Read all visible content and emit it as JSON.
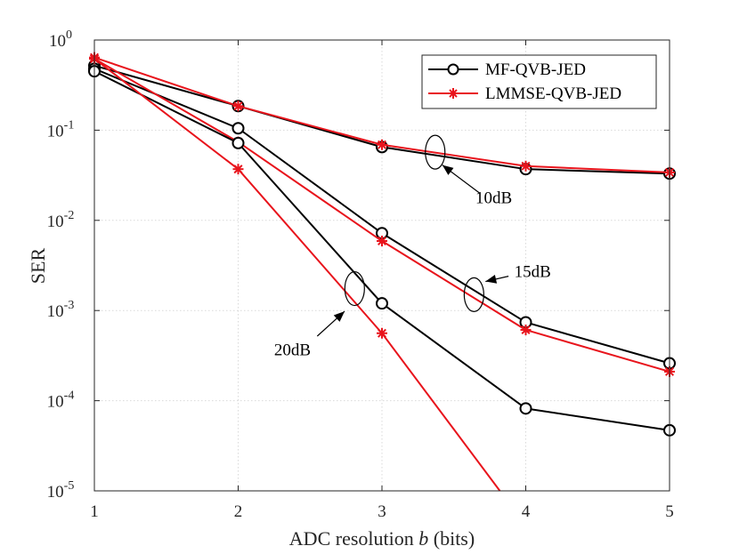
{
  "chart_data": {
    "type": "line",
    "yscale": "log",
    "xlabel_prefix": "ADC resolution ",
    "xlabel_var": "b",
    "xlabel_suffix": " (bits)",
    "ylabel": "SER",
    "xlim": [
      1,
      5
    ],
    "ylim": [
      1e-05,
      1
    ],
    "x_ticks": [
      1,
      2,
      3,
      4,
      5
    ],
    "y_ticks": [
      {
        "value": 1,
        "base": "10",
        "exp": "0"
      },
      {
        "value": 0.1,
        "base": "10",
        "exp": "-1"
      },
      {
        "value": 0.01,
        "base": "10",
        "exp": "-2"
      },
      {
        "value": 0.001,
        "base": "10",
        "exp": "-3"
      },
      {
        "value": 0.0001,
        "base": "10",
        "exp": "-4"
      },
      {
        "value": 1e-05,
        "base": "10",
        "exp": "-5"
      }
    ],
    "grid": true,
    "legend_position": "top-right",
    "legend": [
      {
        "label": "MF-QVB-JED",
        "color": "#000000",
        "marker": "circle"
      },
      {
        "label": "LMMSE-QVB-JED",
        "color": "#e8141c",
        "marker": "asterisk"
      }
    ],
    "series": [
      {
        "name": "MF-QVB-JED",
        "snr": "10dB",
        "color": "#000000",
        "marker": "circle",
        "x": [
          1,
          2,
          3,
          4,
          5
        ],
        "values": [
          0.52,
          0.185,
          0.065,
          0.037,
          0.033
        ]
      },
      {
        "name": "LMMSE-QVB-JED",
        "snr": "10dB",
        "color": "#e8141c",
        "marker": "asterisk",
        "x": [
          1,
          2,
          3,
          4,
          5
        ],
        "values": [
          0.64,
          0.185,
          0.069,
          0.04,
          0.034
        ]
      },
      {
        "name": "MF-QVB-JED",
        "snr": "15dB",
        "color": "#000000",
        "marker": "circle",
        "x": [
          1,
          2,
          3,
          4,
          5
        ],
        "values": [
          0.48,
          0.105,
          0.0072,
          0.00074,
          0.00026
        ]
      },
      {
        "name": "LMMSE-QVB-JED",
        "snr": "15dB",
        "color": "#e8141c",
        "marker": "asterisk",
        "x": [
          1,
          2,
          3,
          4,
          5
        ],
        "values": [
          0.62,
          0.074,
          0.0059,
          0.00061,
          0.00021
        ]
      },
      {
        "name": "MF-QVB-JED",
        "snr": "20dB",
        "color": "#000000",
        "marker": "circle",
        "x": [
          1,
          2,
          3,
          4,
          5
        ],
        "values": [
          0.45,
          0.072,
          0.0012,
          8.2e-05,
          4.7e-05
        ]
      },
      {
        "name": "LMMSE-QVB-JED",
        "snr": "20dB",
        "color": "#e8141c",
        "marker": "asterisk",
        "x": [
          1,
          2,
          3,
          3.82
        ],
        "values": [
          0.62,
          0.037,
          0.00056,
          1e-05
        ]
      }
    ],
    "annotations": [
      {
        "text": "10dB",
        "ellipse_x": 3.37,
        "ellipse_y": 0.057,
        "arrow_to_x": 3.42,
        "arrow_to_y": 0.041,
        "arrow_from_x": 3.68,
        "arrow_from_y": 0.02,
        "text_x": 3.65,
        "text_y": 0.0155
      },
      {
        "text": "15dB",
        "ellipse_x": 3.64,
        "ellipse_y": 0.0015,
        "arrow_to_x": 3.72,
        "arrow_to_y": 0.0021,
        "arrow_from_x": 3.88,
        "arrow_from_y": 0.0024,
        "text_x": 3.92,
        "text_y": 0.00235
      },
      {
        "text": "20dB",
        "ellipse_x": 2.81,
        "ellipse_y": 0.00175,
        "arrow_to_x": 2.74,
        "arrow_to_y": 0.00098,
        "arrow_from_x": 2.55,
        "arrow_from_y": 0.00052,
        "text_x": 2.25,
        "text_y": 0.00032
      }
    ]
  }
}
